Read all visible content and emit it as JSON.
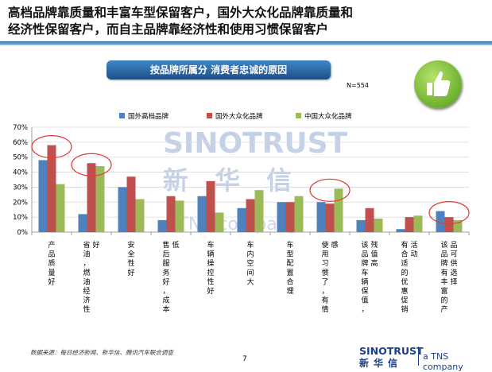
{
  "headline": {
    "line1": "高档品牌靠质量和丰富车型保留客户，国外大众化品牌靠质量和",
    "line2": "经济性保留客户，而自主品牌靠经济性和使用习惯保留客户"
  },
  "banner": "按品牌所属分   消费者忠诚的原因",
  "sample_size": "N=554",
  "chart_data": {
    "type": "bar",
    "categories": [
      "产品质量好",
      "省油，燃油经济性好",
      "安全性好",
      "售后服务好，成本低",
      "车辆操控性好",
      "车内空间大",
      "车型配置合理",
      "使用习惯了，有情感",
      "该品牌车辆保值，残值高",
      "有合适的优惠促销活动",
      "该品牌有丰富的产品可供选择"
    ],
    "series": [
      {
        "name": "国外高档品牌",
        "color": "#4f81bd",
        "values": [
          48,
          12,
          30,
          8,
          24,
          16,
          20,
          20,
          8,
          2,
          14
        ]
      },
      {
        "name": "国外大众化品牌",
        "color": "#c0504d",
        "values": [
          58,
          46,
          37,
          24,
          34,
          22,
          20,
          19,
          16,
          10,
          10
        ]
      },
      {
        "name": "中国大众化品牌",
        "color": "#9bbb59",
        "values": [
          32,
          44,
          22,
          21,
          13,
          28,
          24,
          29,
          9,
          11,
          8
        ]
      }
    ],
    "ylim": [
      0,
      70
    ],
    "yticks": [
      "0%",
      "10%",
      "20%",
      "30%",
      "40%",
      "50%",
      "60%",
      "70%"
    ],
    "legend_position": "top",
    "highlighted_categories": [
      0,
      1,
      7,
      10
    ],
    "highlight_color": "#e23a36"
  },
  "watermark": {
    "name": "SINOTRUST",
    "cn": "新华信",
    "tns": "a TNS company"
  },
  "source": "数据来源：每日经济新闻、新华信、腾讯汽车联合调查",
  "page_number": "7",
  "logo": {
    "name": "SINOTRUST",
    "cn": "新华信",
    "tns": "a TNS company"
  }
}
